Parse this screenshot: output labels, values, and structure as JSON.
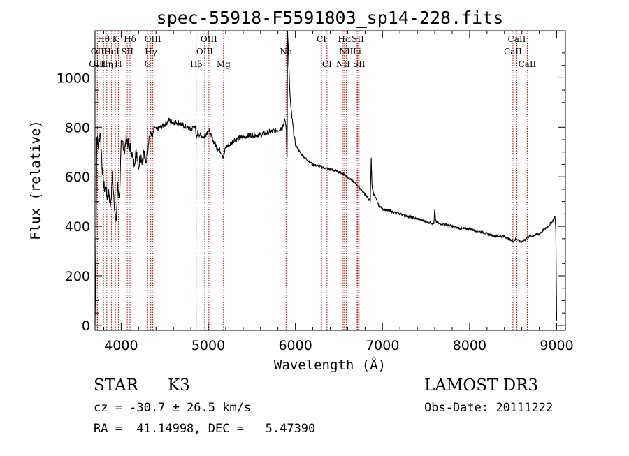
{
  "chart_data": {
    "type": "line",
    "title": "spec-55918-F5591803_sp14-228.fits",
    "xlabel": "Wavelength (Å)",
    "ylabel": "Flux (relative)",
    "xlim": [
      3700,
      9100
    ],
    "ylim": [
      -20,
      1190
    ],
    "x_ticks": [
      4000,
      5000,
      6000,
      7000,
      8000,
      9000
    ],
    "y_ticks": [
      0,
      200,
      400,
      600,
      800,
      1000
    ],
    "series": [
      {
        "name": "spectrum",
        "x": [
          3700,
          3710,
          3720,
          3740,
          3760,
          3780,
          3800,
          3820,
          3840,
          3860,
          3880,
          3900,
          3920,
          3940,
          3960,
          3980,
          4000,
          4020,
          4040,
          4060,
          4080,
          4100,
          4120,
          4140,
          4160,
          4180,
          4200,
          4220,
          4240,
          4260,
          4280,
          4300,
          4320,
          4340,
          4360,
          4380,
          4400,
          4450,
          4500,
          4550,
          4600,
          4650,
          4700,
          4750,
          4800,
          4850,
          4861,
          4880,
          4900,
          4950,
          5000,
          5050,
          5100,
          5150,
          5175,
          5200,
          5250,
          5300,
          5400,
          5500,
          5600,
          5700,
          5800,
          5850,
          5880,
          5895,
          5905,
          5910,
          5920,
          5935,
          5950,
          5980,
          6000,
          6050,
          6100,
          6200,
          6300,
          6400,
          6500,
          6563,
          6600,
          6700,
          6800,
          6860,
          6870,
          6880,
          6900,
          6950,
          7000,
          7100,
          7200,
          7300,
          7400,
          7500,
          7590,
          7600,
          7610,
          7650,
          7700,
          7800,
          7900,
          8000,
          8100,
          8200,
          8300,
          8400,
          8498,
          8542,
          8600,
          8662,
          8700,
          8800,
          8900,
          8950,
          8980,
          8990,
          9000
        ],
        "y": [
          0,
          280,
          760,
          720,
          790,
          650,
          560,
          550,
          520,
          540,
          480,
          610,
          510,
          400,
          560,
          520,
          720,
          740,
          700,
          760,
          730,
          720,
          700,
          650,
          680,
          700,
          640,
          690,
          670,
          700,
          660,
          690,
          760,
          780,
          760,
          800,
          790,
          800,
          810,
          830,
          820,
          820,
          810,
          800,
          790,
          810,
          750,
          780,
          770,
          760,
          790,
          750,
          720,
          700,
          680,
          720,
          730,
          750,
          760,
          770,
          770,
          780,
          790,
          800,
          830,
          800,
          680,
          1200,
          1100,
          950,
          870,
          780,
          730,
          700,
          680,
          650,
          640,
          630,
          620,
          610,
          600,
          570,
          530,
          500,
          680,
          560,
          530,
          490,
          470,
          460,
          450,
          440,
          430,
          420,
          410,
          470,
          420,
          410,
          410,
          400,
          390,
          390,
          380,
          370,
          360,
          360,
          340,
          350,
          335,
          355,
          360,
          370,
          400,
          420,
          440,
          380,
          20
        ]
      }
    ],
    "line_markers": [
      {
        "label": "Hθ",
        "wavelength": 3797,
        "row": 0
      },
      {
        "label": "K",
        "wavelength": 3934,
        "row": 0
      },
      {
        "label": "Hδ",
        "wavelength": 4101,
        "row": 0
      },
      {
        "label": "OIII",
        "wavelength": 4363,
        "row": 0
      },
      {
        "label": "OIII",
        "wavelength": 5007,
        "row": 0
      },
      {
        "label": "CI",
        "wavelength": 6300,
        "row": 0
      },
      {
        "label": "Hα",
        "wavelength": 6563,
        "row": 0
      },
      {
        "label": "SII",
        "wavelength": 6717,
        "row": 0
      },
      {
        "label": "CaII",
        "wavelength": 8542,
        "row": 0
      },
      {
        "label": "OII",
        "wavelength": 3727,
        "row": 1
      },
      {
        "label": "HeI",
        "wavelength": 3889,
        "row": 1
      },
      {
        "label": "SII",
        "wavelength": 4070,
        "row": 1
      },
      {
        "label": "Hγ",
        "wavelength": 4340,
        "row": 1
      },
      {
        "label": "OIII",
        "wavelength": 4959,
        "row": 1
      },
      {
        "label": "Na",
        "wavelength": 5893,
        "row": 1
      },
      {
        "label": "NII",
        "wavelength": 6584,
        "row": 1
      },
      {
        "label": "Li",
        "wavelength": 6708,
        "row": 1
      },
      {
        "label": "CaII",
        "wavelength": 8498,
        "row": 1
      },
      {
        "label": "OIII",
        "wavelength": 3727,
        "row": 2
      },
      {
        "label": "Hη",
        "wavelength": 3835,
        "row": 2
      },
      {
        "label": "H",
        "wavelength": 3968,
        "row": 2
      },
      {
        "label": "G",
        "wavelength": 4304,
        "row": 2
      },
      {
        "label": "Hβ",
        "wavelength": 4861,
        "row": 2
      },
      {
        "label": "Mg",
        "wavelength": 5175,
        "row": 2
      },
      {
        "label": "CI",
        "wavelength": 6363,
        "row": 2
      },
      {
        "label": "NII",
        "wavelength": 6548,
        "row": 2
      },
      {
        "label": "SII",
        "wavelength": 6731,
        "row": 2
      },
      {
        "label": "CaII",
        "wavelength": 8662,
        "row": 2
      }
    ]
  },
  "info": {
    "class": "STAR",
    "subclass": "K3",
    "survey": "LAMOST DR3",
    "cz": "cz = -30.7 ± 26.5 km/s",
    "obs_date": "Obs-Date: 20111222",
    "coords": "RA =  41.14998, DEC =   5.47390"
  },
  "colors": {
    "spectrum": "#000000",
    "marker_line": "#c00000",
    "axis": "#000000"
  }
}
